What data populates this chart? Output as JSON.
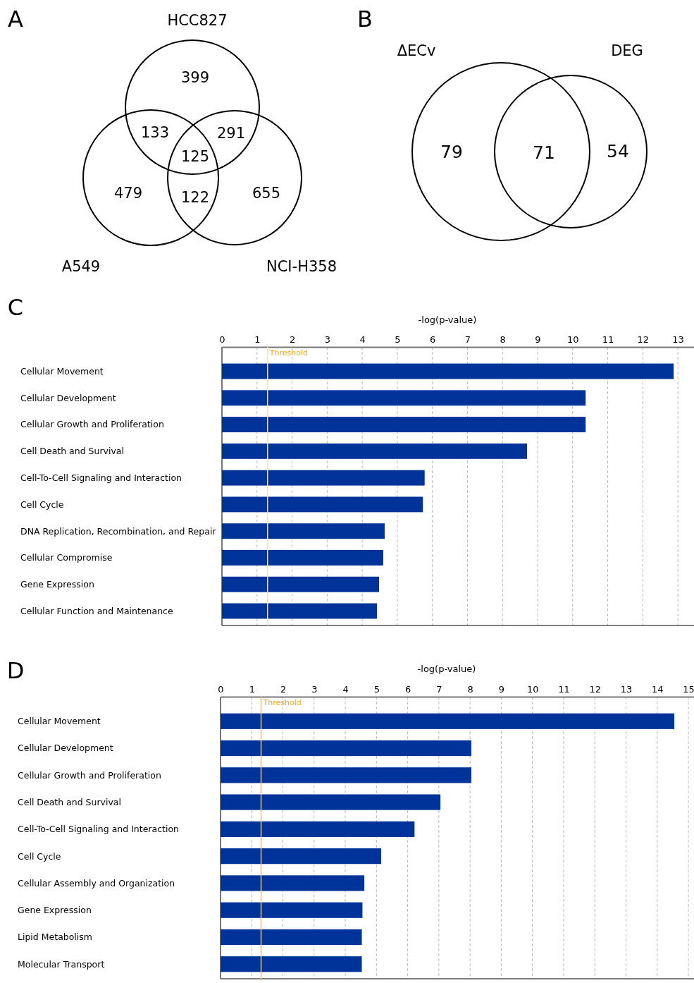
{
  "chart_data": [
    {
      "type": "other",
      "title": "A",
      "categories": [
        "HCC827",
        "A549",
        "NCI-H358"
      ],
      "annotations": [
        "399",
        "133",
        "291",
        "125",
        "479",
        "122",
        "655"
      ]
    },
    {
      "type": "other",
      "title": "B",
      "categories": [
        "ΔECv",
        "DEG"
      ],
      "annotations": [
        "79",
        "71",
        "54"
      ]
    },
    {
      "type": "bar",
      "orientation": "horizontal",
      "title": "C",
      "xlabel": "-log(p-value)",
      "categories": [
        "Cellular Movement",
        "Cellular Development",
        "Cellular Growth and Proliferation",
        "Cell Death and Survival",
        "Cell-To-Cell Signaling and Interaction",
        "Cell Cycle",
        "DNA Replication, Recombination, and Repair",
        "Cellular Compromise",
        "Gene Expression",
        "Cellular Function and Maintenance"
      ],
      "values": [
        12.88,
        10.37,
        10.37,
        8.7,
        5.78,
        5.73,
        4.64,
        4.6,
        4.48,
        4.42
      ],
      "color": "#003399",
      "xlim": [
        0,
        13.46
      ],
      "xticks": [
        0,
        1,
        2,
        3,
        4,
        5,
        6,
        7,
        8,
        9,
        10,
        11,
        12,
        13
      ],
      "grid": "x",
      "ref_lines": [
        {
          "axis": "x",
          "value": 1.3,
          "label": "Threshold",
          "color": "#fde0b8"
        }
      ]
    },
    {
      "type": "bar",
      "orientation": "horizontal",
      "title": "D",
      "xlabel": "-log(p-value)",
      "categories": [
        "Cellular Movement",
        "Cellular Development",
        "Cellular Growth and Proliferation",
        "Cell Death and Survival",
        "Cell-To-Cell Signaling and Interaction",
        "Cell Cycle",
        "Cellular Assembly and Organization",
        "Gene Expression",
        "Lipid Metabolism",
        "Molecular Transport"
      ],
      "values": [
        14.55,
        8.04,
        8.04,
        7.05,
        6.22,
        5.15,
        4.61,
        4.55,
        4.53,
        4.53
      ],
      "color": "#003399",
      "xlim": [
        0,
        15.18
      ],
      "xticks": [
        0,
        1,
        2,
        3,
        4,
        5,
        6,
        7,
        8,
        9,
        10,
        11,
        12,
        13,
        14,
        15
      ],
      "grid": "x",
      "ref_lines": [
        {
          "axis": "x",
          "value": 1.3,
          "label": "Threshold",
          "color": "#e3c08c"
        }
      ]
    }
  ]
}
